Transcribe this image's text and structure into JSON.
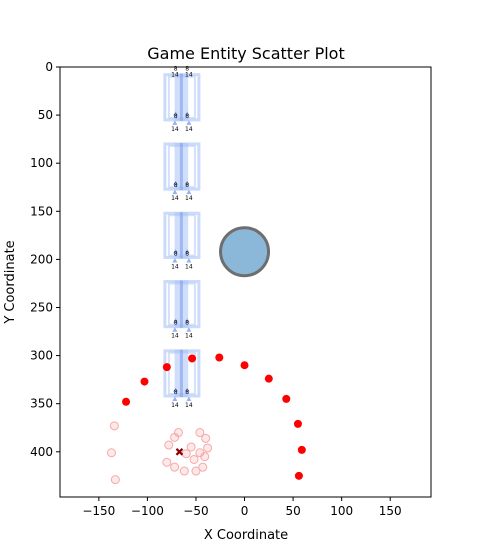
{
  "chart_data": {
    "type": "scatter",
    "title": "Game Entity Scatter Plot",
    "xlabel": "X Coordinate",
    "ylabel": "Y Coordinate",
    "xlim": [
      -190,
      192
    ],
    "ylim": [
      447,
      0
    ],
    "y_inverted": true,
    "grid": false,
    "xticks": [
      -150,
      -100,
      -50,
      0,
      50,
      100,
      150
    ],
    "yticks": [
      0,
      50,
      100,
      150,
      200,
      250,
      300,
      350,
      400
    ],
    "colors": {
      "red": "#ff0000",
      "faded_red": "#f7a8a8",
      "dark_red": "#8b0000",
      "blue_fill": "#7eb0d5",
      "blue_edge": "#6e6e6e",
      "tower_blue": "#a9c3f5",
      "tower_blue_dark": "#7d9ef0"
    },
    "towers": [
      {
        "y_top": 8,
        "y_bottom": 55
      },
      {
        "y_top": 80,
        "y_bottom": 127
      },
      {
        "y_top": 152,
        "y_bottom": 198
      },
      {
        "y_top": 223,
        "y_bottom": 270
      },
      {
        "y_top": 295,
        "y_bottom": 342
      }
    ],
    "tower_x": {
      "left": -82,
      "right": -47,
      "inner_left": -72,
      "inner_right": -58
    },
    "tower_labels": {
      "top": [
        "8",
        "8"
      ],
      "bottom": [
        "14",
        "14"
      ]
    },
    "series": [
      {
        "marker": "circle",
        "color": "#ff0000",
        "points": [
          {
            "x": -122,
            "y": 348
          },
          {
            "x": -103,
            "y": 327
          },
          {
            "x": -80,
            "y": 312
          },
          {
            "x": -54,
            "y": 303
          },
          {
            "x": -26,
            "y": 302
          },
          {
            "x": 0,
            "y": 310
          },
          {
            "x": 25,
            "y": 324
          },
          {
            "x": 43,
            "y": 345
          },
          {
            "x": 55,
            "y": 371
          },
          {
            "x": 59,
            "y": 398
          },
          {
            "x": 56,
            "y": 425
          }
        ]
      },
      {
        "marker": "circle-hollow",
        "color": "#f7a8a8",
        "points": [
          {
            "x": -134,
            "y": 373
          },
          {
            "x": -137,
            "y": 401
          },
          {
            "x": -133,
            "y": 429
          },
          {
            "x": -68,
            "y": 380
          },
          {
            "x": -72,
            "y": 385
          },
          {
            "x": -78,
            "y": 393
          },
          {
            "x": -80,
            "y": 411
          },
          {
            "x": -72,
            "y": 416
          },
          {
            "x": -62,
            "y": 420
          },
          {
            "x": -50,
            "y": 420
          },
          {
            "x": -43,
            "y": 416
          },
          {
            "x": -41,
            "y": 405
          },
          {
            "x": -38,
            "y": 396
          },
          {
            "x": -46,
            "y": 380
          },
          {
            "x": -40,
            "y": 386
          },
          {
            "x": -55,
            "y": 395
          },
          {
            "x": -60,
            "y": 402
          },
          {
            "x": -52,
            "y": 408
          },
          {
            "x": -46,
            "y": 401
          }
        ]
      },
      {
        "marker": "x",
        "color": "#8b0000",
        "points": [
          {
            "x": -67,
            "y": 400
          }
        ]
      },
      {
        "marker": "big-circle",
        "color": "#7eb0d5",
        "points": [
          {
            "x": 0,
            "y": 192
          }
        ]
      }
    ]
  }
}
